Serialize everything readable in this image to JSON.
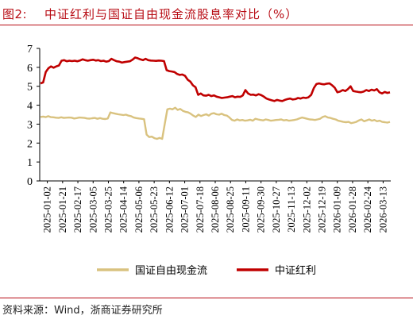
{
  "figure": {
    "label": "图2:",
    "title": "中证红利与国证自由现金流股息率对比（%）",
    "source": "资料来源：Wind，浙商证券研究所"
  },
  "chart_data": {
    "type": "line",
    "title": "中证红利与国证自由现金流股息率对比（%）",
    "xlabel": "",
    "ylabel": "",
    "ylim": [
      0,
      7
    ],
    "y_ticks": [
      0,
      1,
      2,
      3,
      4,
      5,
      6,
      7
    ],
    "x_tick_labels": [
      "2025-01-02",
      "2025-01-21",
      "2025-02-17",
      "2025-03-05",
      "2025-03-25",
      "2025-04-14",
      "2025-05-06",
      "2025-05-23",
      "2025-06-12",
      "2025-07-01",
      "2025-07-18",
      "2025-08-06",
      "2025-08-25",
      "2025-09-11",
      "2025-09-30",
      "2025-10-27",
      "2025-11-13",
      "2025-12-02",
      "2025-12-19",
      "2026-01-09",
      "2026-01-28",
      "2026-02-24",
      "2026-03-13"
    ],
    "grid": false,
    "legend_position": "bottom",
    "series": [
      {
        "name": "国证自由现金流",
        "color": "#d9c27f",
        "values": [
          3.38,
          3.4,
          3.37,
          3.42,
          3.37,
          3.36,
          3.34,
          3.33,
          3.36,
          3.33,
          3.34,
          3.35,
          3.34,
          3.3,
          3.32,
          3.35,
          3.34,
          3.33,
          3.3,
          3.29,
          3.31,
          3.33,
          3.28,
          3.32,
          3.28,
          3.27,
          3.3,
          3.62,
          3.58,
          3.55,
          3.52,
          3.5,
          3.48,
          3.5,
          3.45,
          3.42,
          3.35,
          3.32,
          3.3,
          3.28,
          3.26,
          2.45,
          2.32,
          2.34,
          2.26,
          2.22,
          2.27,
          2.22,
          3.0,
          3.78,
          3.82,
          3.78,
          3.87,
          3.75,
          3.8,
          3.7,
          3.65,
          3.62,
          3.55,
          3.45,
          3.38,
          3.5,
          3.43,
          3.48,
          3.52,
          3.45,
          3.55,
          3.58,
          3.52,
          3.5,
          3.55,
          3.48,
          3.45,
          3.35,
          3.22,
          3.18,
          3.25,
          3.2,
          3.22,
          3.18,
          3.2,
          3.23,
          3.18,
          3.28,
          3.25,
          3.22,
          3.2,
          3.25,
          3.22,
          3.18,
          3.2,
          3.22,
          3.23,
          3.25,
          3.2,
          3.22,
          3.18,
          3.2,
          3.22,
          3.25,
          3.3,
          3.35,
          3.32,
          3.28,
          3.25,
          3.24,
          3.22,
          3.25,
          3.28,
          3.38,
          3.42,
          3.35,
          3.33,
          3.28,
          3.25,
          3.18,
          3.15,
          3.12,
          3.1,
          3.12,
          3.05,
          3.08,
          3.12,
          3.2,
          3.25,
          3.15,
          3.2,
          3.25,
          3.18,
          3.22,
          3.15,
          3.18,
          3.12,
          3.1,
          3.08,
          3.12
        ]
      },
      {
        "name": "中证红利",
        "color": "#c00000",
        "values": [
          5.15,
          5.2,
          5.75,
          5.95,
          6.05,
          5.98,
          6.05,
          6.1,
          6.35,
          6.38,
          6.32,
          6.35,
          6.33,
          6.35,
          6.32,
          6.36,
          6.42,
          6.38,
          6.35,
          6.38,
          6.4,
          6.36,
          6.38,
          6.33,
          6.35,
          6.3,
          6.33,
          6.45,
          6.38,
          6.32,
          6.3,
          6.25,
          6.28,
          6.3,
          6.32,
          6.4,
          6.52,
          6.48,
          6.42,
          6.38,
          6.45,
          6.38,
          6.36,
          6.35,
          6.34,
          6.36,
          6.35,
          6.33,
          5.85,
          5.8,
          5.78,
          5.75,
          5.65,
          5.6,
          5.62,
          5.55,
          5.35,
          5.25,
          5.05,
          4.95,
          4.55,
          4.62,
          4.52,
          4.5,
          4.55,
          4.48,
          4.52,
          4.45,
          4.42,
          4.38,
          4.4,
          4.42,
          4.45,
          4.48,
          4.42,
          4.45,
          4.44,
          4.52,
          4.8,
          4.62,
          4.55,
          4.56,
          4.52,
          4.58,
          4.53,
          4.45,
          4.35,
          4.3,
          4.26,
          4.22,
          4.28,
          4.24,
          4.22,
          4.28,
          4.32,
          4.35,
          4.3,
          4.32,
          4.38,
          4.35,
          4.4,
          4.38,
          4.42,
          4.55,
          4.9,
          5.12,
          5.15,
          5.12,
          5.1,
          5.14,
          5.15,
          5.05,
          4.92,
          4.68,
          4.72,
          4.8,
          4.75,
          4.85,
          5.0,
          4.75,
          4.72,
          4.7,
          4.68,
          4.72,
          4.8,
          4.75,
          4.82,
          4.78,
          4.85,
          4.68,
          4.62,
          4.7,
          4.65,
          4.68
        ]
      }
    ]
  }
}
